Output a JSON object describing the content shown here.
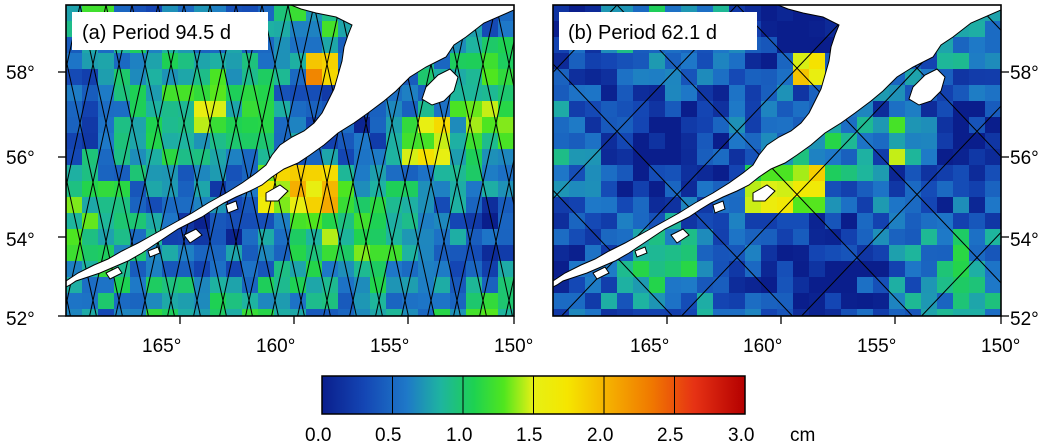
{
  "figure": {
    "panels": [
      {
        "id": "a",
        "title": "(a) Period 94.5 d",
        "track_pattern": "dense"
      },
      {
        "id": "b",
        "title": "(b) Period 62.1 d",
        "track_pattern": "sparse"
      }
    ],
    "axes": {
      "lon_ticks": [
        "165°",
        "160°",
        "155°",
        "150°"
      ],
      "lat_ticks": [
        "52°",
        "54°",
        "56°",
        "58°"
      ],
      "lon_range": [
        "165.5°E west of plot edge",
        "150°"
      ],
      "lat_range": [
        52,
        59.3
      ]
    },
    "colorbar": {
      "ticks": [
        "0.0",
        "0.5",
        "1.0",
        "1.5",
        "2.0",
        "2.5",
        "3.0"
      ],
      "unit": "cm",
      "range": [
        0.0,
        3.0
      ],
      "colors": [
        "#0a1e8c",
        "#1e64c8",
        "#1eb4b4",
        "#1ed250",
        "#a0e628",
        "#f5f000",
        "#f5b400",
        "#f06400",
        "#d21e14",
        "#b40000"
      ]
    }
  }
}
